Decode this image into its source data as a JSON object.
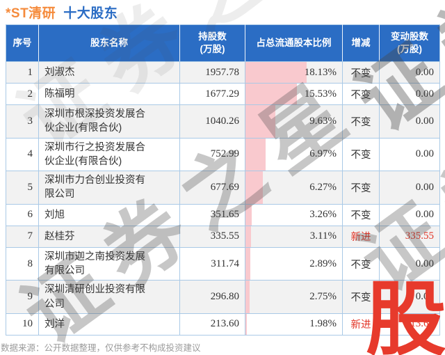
{
  "title": {
    "ticker": "*ST清研",
    "suffix": "十大股东"
  },
  "colors": {
    "title_orange": "#f58b3c",
    "title_blue": "#2a6cc4",
    "header_bg": "#2b6dc4",
    "header_text": "#ffffff",
    "border": "#a9c9e6",
    "row_alt_bg": "#f2f2f2",
    "bar_pink": "#f9c9ce",
    "new_entry_red": "#e23325",
    "logo_red": "#e73a2c",
    "footer_gray": "#9b9b9b",
    "body_text": "#333333"
  },
  "table": {
    "headers": [
      "序号",
      "股东名称",
      "持股数\n(万股)",
      "占总流通股本比例",
      "增减",
      "变动股数\n(万股)"
    ],
    "rows": [
      {
        "no": "1",
        "name": "刘淑杰",
        "shares": "1957.78",
        "pct": "18.13%",
        "pct_value": 18.13,
        "change": "不变",
        "change_shares": "0.00",
        "is_new": false
      },
      {
        "no": "2",
        "name": "陈福明",
        "shares": "1677.29",
        "pct": "15.53%",
        "pct_value": 15.53,
        "change": "不变",
        "change_shares": "0.00",
        "is_new": false
      },
      {
        "no": "3",
        "name": "深圳市根深投资发展合伙企业(有限合伙)",
        "shares": "1040.26",
        "pct": "9.63%",
        "pct_value": 9.63,
        "change": "不变",
        "change_shares": "0.00",
        "is_new": false
      },
      {
        "no": "4",
        "name": "深圳市行之投资发展合伙企业(有限合伙)",
        "shares": "752.99",
        "pct": "6.97%",
        "pct_value": 6.97,
        "change": "不变",
        "change_shares": "0.00",
        "is_new": false
      },
      {
        "no": "5",
        "name": "深圳市力合创业投资有限公司",
        "shares": "677.69",
        "pct": "6.27%",
        "pct_value": 6.27,
        "change": "不变",
        "change_shares": "0.00",
        "is_new": false
      },
      {
        "no": "6",
        "name": "刘旭",
        "shares": "351.65",
        "pct": "3.26%",
        "pct_value": 3.26,
        "change": "不变",
        "change_shares": "0.00",
        "is_new": false
      },
      {
        "no": "7",
        "name": "赵桂芬",
        "shares": "335.55",
        "pct": "3.11%",
        "pct_value": 3.11,
        "change": "新进",
        "change_shares": "335.55",
        "is_new": true
      },
      {
        "no": "8",
        "name": "深圳市迦之南投资发展有限公司",
        "shares": "311.74",
        "pct": "2.89%",
        "pct_value": 2.89,
        "change": "不变",
        "change_shares": "0.00",
        "is_new": false
      },
      {
        "no": "9",
        "name": "深圳清研创业投资有限公司",
        "shares": "296.80",
        "pct": "2.75%",
        "pct_value": 2.75,
        "change": "不变",
        "change_shares": "0.00",
        "is_new": false
      },
      {
        "no": "10",
        "name": "刘洋",
        "shares": "213.60",
        "pct": "1.98%",
        "pct_value": 1.98,
        "change": "新进",
        "change_shares": "213.60",
        "is_new": true
      }
    ]
  },
  "footer": {
    "source_note": "数据来源：公开数据整理，仅供参考不构成投资建议"
  },
  "watermark": {
    "text": "证券之星",
    "logo_char": "股"
  },
  "chart_data": {
    "type": "table",
    "title": "*ST清研 十大股东",
    "columns": [
      "序号",
      "股东名称",
      "持股数(万股)",
      "占总流通股本比例",
      "增减",
      "变动股数(万股)"
    ],
    "rows": [
      [
        1,
        "刘淑杰",
        1957.78,
        "18.13%",
        "不变",
        0.0
      ],
      [
        2,
        "陈福明",
        1677.29,
        "15.53%",
        "不变",
        0.0
      ],
      [
        3,
        "深圳市根深投资发展合伙企业(有限合伙)",
        1040.26,
        "9.63%",
        "不变",
        0.0
      ],
      [
        4,
        "深圳市行之投资发展合伙企业(有限合伙)",
        752.99,
        "6.97%",
        "不变",
        0.0
      ],
      [
        5,
        "深圳市力合创业投资有限公司",
        677.69,
        "6.27%",
        "不变",
        0.0
      ],
      [
        6,
        "刘旭",
        351.65,
        "3.26%",
        "不变",
        0.0
      ],
      [
        7,
        "赵桂芬",
        335.55,
        "3.11%",
        "新进",
        335.55
      ],
      [
        8,
        "深圳市迦之南投资发展有限公司",
        311.74,
        "2.89%",
        "不变",
        0.0
      ],
      [
        9,
        "深圳清研创业投资有限公司",
        296.8,
        "2.75%",
        "不变",
        0.0
      ],
      [
        10,
        "刘洋",
        213.6,
        "1.98%",
        "新进",
        213.6
      ]
    ],
    "notes": "占总流通股本比例 column shows a pink proportional data bar behind each percentage value"
  }
}
